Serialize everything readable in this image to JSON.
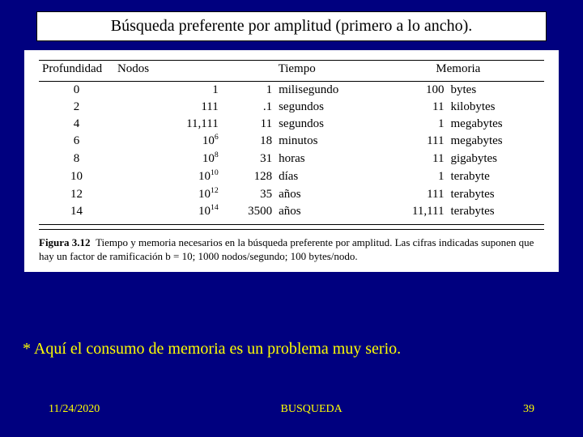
{
  "title": "Búsqueda preferente por amplitud (primero a lo ancho).",
  "table": {
    "headers": {
      "depth": "Profundidad",
      "nodes": "Nodos",
      "time": "Tiempo",
      "memory": "Memoria"
    },
    "rows": [
      {
        "depth": "0",
        "nodes": "1",
        "time_n": "1",
        "time_u": "milisegundo",
        "mem_n": "100",
        "mem_u": "bytes"
      },
      {
        "depth": "2",
        "nodes": "111",
        "time_n": ".1",
        "time_u": "segundos",
        "mem_n": "11",
        "mem_u": "kilobytes"
      },
      {
        "depth": "4",
        "nodes": "11,111",
        "time_n": "11",
        "time_u": "segundos",
        "mem_n": "1",
        "mem_u": "megabytes"
      },
      {
        "depth": "6",
        "nodes": "10^6",
        "time_n": "18",
        "time_u": "minutos",
        "mem_n": "111",
        "mem_u": "megabytes"
      },
      {
        "depth": "8",
        "nodes": "10^8",
        "time_n": "31",
        "time_u": "horas",
        "mem_n": "11",
        "mem_u": "gigabytes"
      },
      {
        "depth": "10",
        "nodes": "10^10",
        "time_n": "128",
        "time_u": "días",
        "mem_n": "1",
        "mem_u": "terabyte"
      },
      {
        "depth": "12",
        "nodes": "10^12",
        "time_n": "35",
        "time_u": "años",
        "mem_n": "111",
        "mem_u": "terabytes"
      },
      {
        "depth": "14",
        "nodes": "10^14",
        "time_n": "3500",
        "time_u": "años",
        "mem_n": "11,111",
        "mem_u": "terabytes"
      }
    ],
    "caption_label": "Figura 3.12",
    "caption_text": "Tiempo y memoria necesarios en la búsqueda preferente por amplitud. Las cifras indicadas suponen que hay un factor de ramificación b = 10; 1000 nodos/segundo; 100 bytes/nodo."
  },
  "note": "* Aquí el consumo de memoria es un problema muy serio.",
  "footer": {
    "date": "11/24/2020",
    "center": "BUSQUEDA",
    "page": "39"
  }
}
